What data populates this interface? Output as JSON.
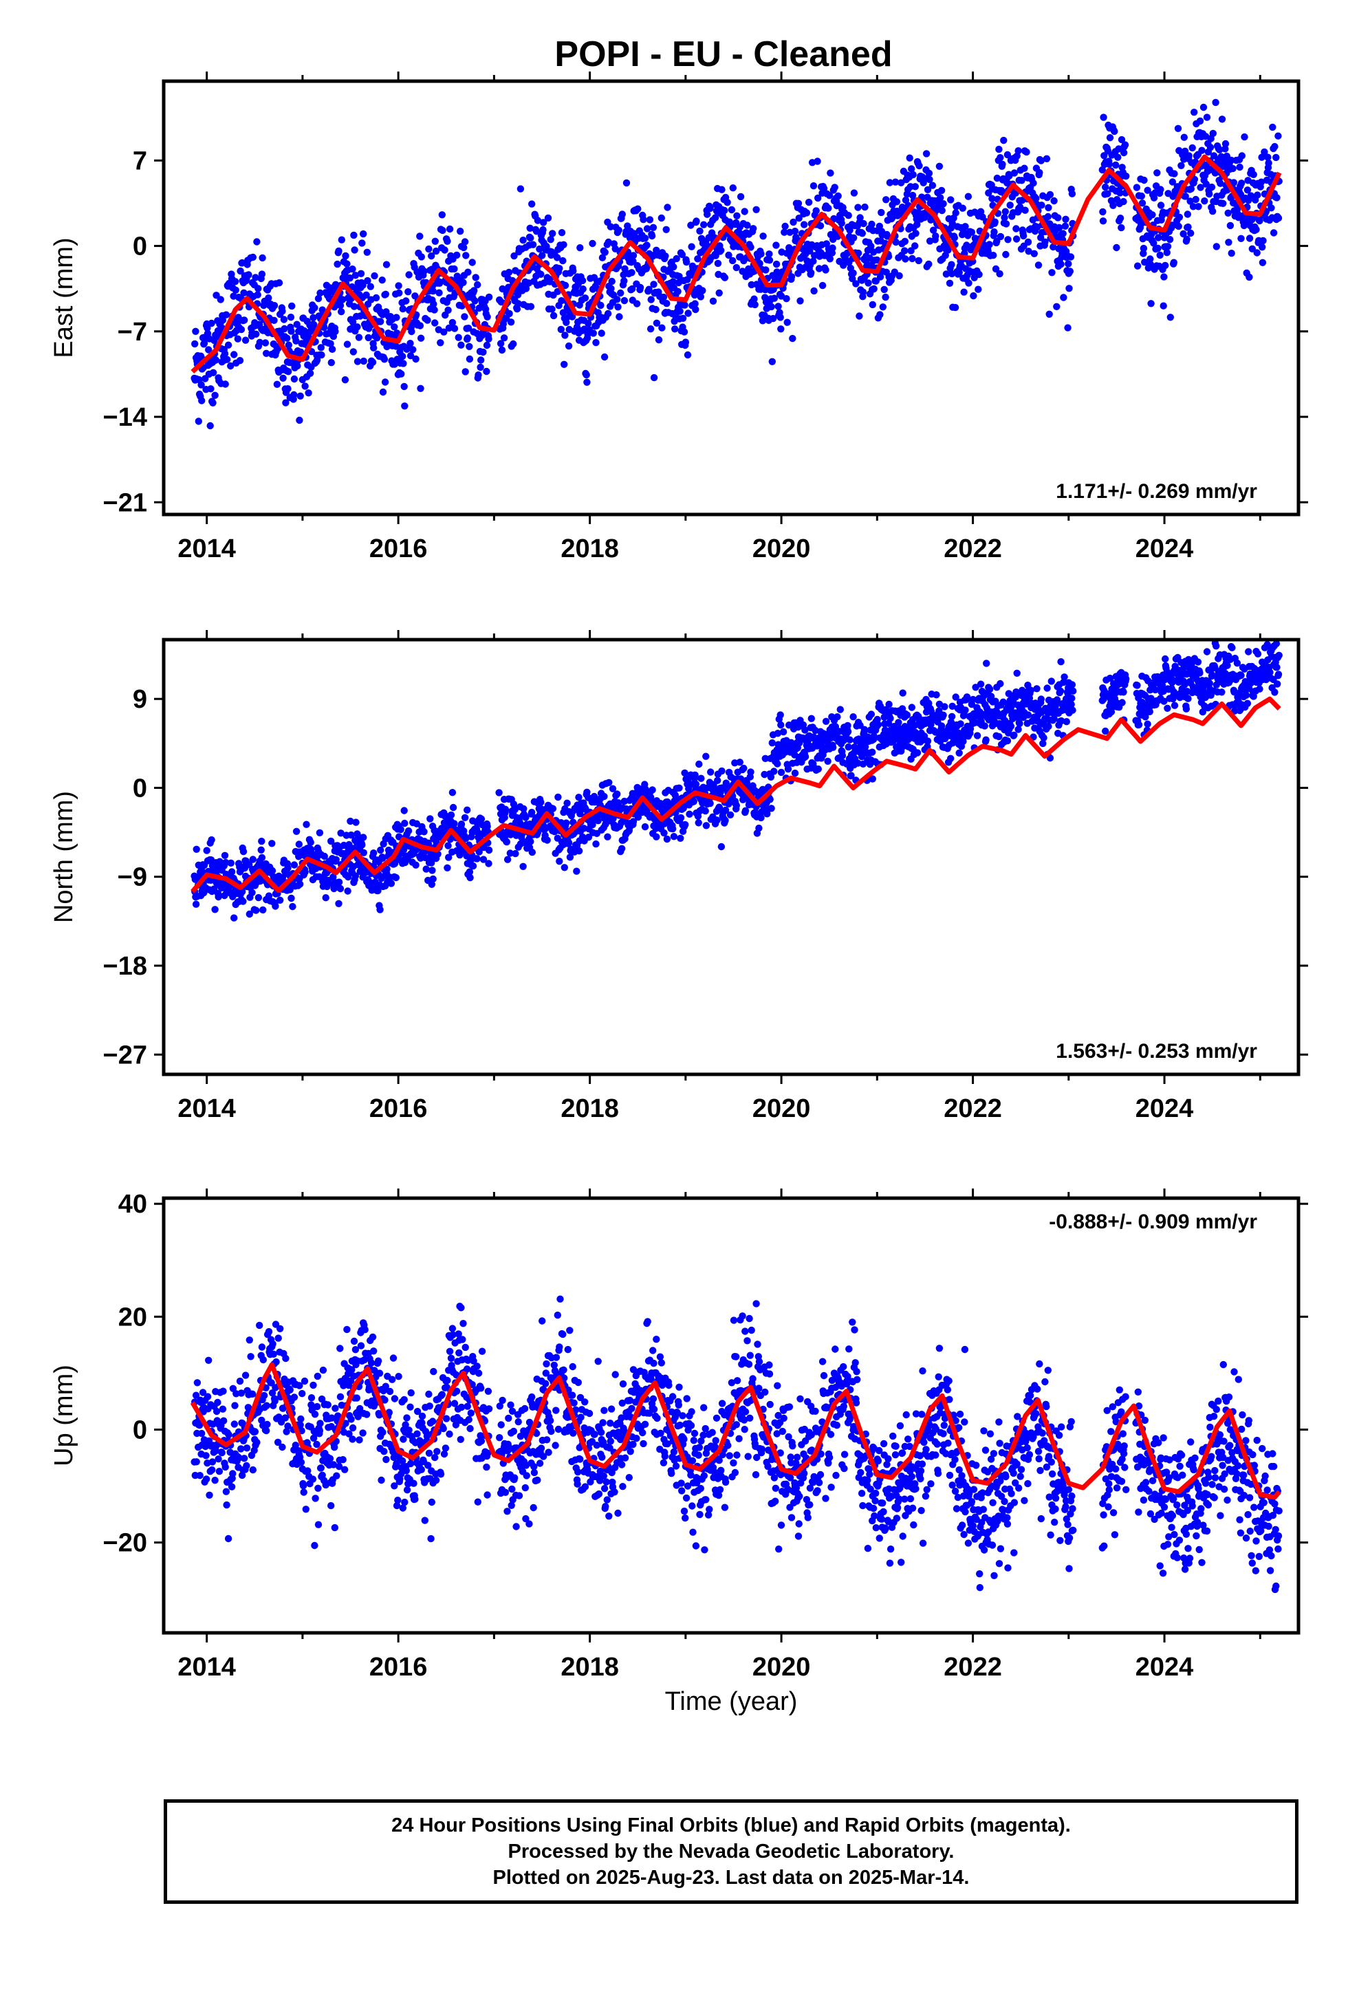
{
  "title": "POPI  - EU - Cleaned",
  "x_axis_label": "Time (year)",
  "x_ticks": [
    "2014",
    "2016",
    "2018",
    "2020",
    "2022",
    "2024"
  ],
  "colors": {
    "data": "#0000ff",
    "fit": "#ff0000",
    "axis": "#000000"
  },
  "footer": {
    "line1": "24 Hour Positions Using Final Orbits (blue) and Rapid Orbits (magenta).",
    "line2": "Processed by the Nevada Geodetic Laboratory.",
    "line3": "Plotted on 2025-Aug-23. Last data on 2025-Mar-14."
  },
  "chart_data": [
    {
      "type": "scatter",
      "component": "east",
      "ylabel": "East (mm)",
      "rate_label": "1.171+/- 0.269 mm/yr",
      "xlim": [
        2013.55,
        2025.4
      ],
      "ylim": [
        -22,
        13.5
      ],
      "yticks": [
        -21,
        -14,
        -7,
        0,
        7
      ],
      "ytick_labels": [
        "−21",
        "−14",
        "−7",
        "0",
        "7"
      ],
      "trend": {
        "intercept_at_2019_5": -2.0,
        "rate": 1.171,
        "annual_amp": 3.6,
        "peak_phase_year_fraction": 0.42
      },
      "fit_points": [
        [
          2013.85,
          -10.3
        ],
        [
          2014.1,
          -8.5
        ],
        [
          2014.3,
          -5.2
        ],
        [
          2014.42,
          -4.3
        ],
        [
          2014.6,
          -5.8
        ],
        [
          2014.85,
          -9.0
        ],
        [
          2015.0,
          -9.3
        ],
        [
          2015.2,
          -6.2
        ],
        [
          2015.42,
          -3.1
        ],
        [
          2015.6,
          -4.6
        ],
        [
          2015.85,
          -7.6
        ],
        [
          2016.0,
          -7.8
        ],
        [
          2016.2,
          -4.6
        ],
        [
          2016.42,
          -2.0
        ],
        [
          2016.6,
          -3.3
        ],
        [
          2016.85,
          -6.7
        ],
        [
          2017.0,
          -6.9
        ],
        [
          2017.2,
          -3.4
        ],
        [
          2017.42,
          -0.9
        ],
        [
          2017.6,
          -2.1
        ],
        [
          2017.85,
          -5.5
        ],
        [
          2018.0,
          -5.6
        ],
        [
          2018.2,
          -2.0
        ],
        [
          2018.42,
          0.3
        ],
        [
          2018.6,
          -1.0
        ],
        [
          2018.85,
          -4.3
        ],
        [
          2019.0,
          -4.4
        ],
        [
          2019.2,
          -0.9
        ],
        [
          2019.42,
          1.5
        ],
        [
          2019.6,
          0.1
        ],
        [
          2019.85,
          -3.2
        ],
        [
          2020.0,
          -3.2
        ],
        [
          2020.2,
          0.3
        ],
        [
          2020.42,
          2.6
        ],
        [
          2020.6,
          1.3
        ],
        [
          2020.85,
          -2.0
        ],
        [
          2021.0,
          -2.1
        ],
        [
          2021.2,
          1.5
        ],
        [
          2021.42,
          3.8
        ],
        [
          2021.6,
          2.5
        ],
        [
          2021.85,
          -0.9
        ],
        [
          2022.0,
          -1.0
        ],
        [
          2022.2,
          2.6
        ],
        [
          2022.42,
          5.0
        ],
        [
          2022.6,
          3.7
        ],
        [
          2022.85,
          0.3
        ],
        [
          2023.0,
          0.2
        ],
        [
          2023.2,
          3.8
        ],
        [
          2023.42,
          6.2
        ],
        [
          2023.6,
          4.9
        ],
        [
          2023.85,
          1.5
        ],
        [
          2024.0,
          1.3
        ],
        [
          2024.2,
          4.9
        ],
        [
          2024.42,
          7.3
        ],
        [
          2024.6,
          6.0
        ],
        [
          2024.85,
          2.7
        ],
        [
          2025.0,
          2.6
        ],
        [
          2025.2,
          6.0
        ]
      ]
    },
    {
      "type": "scatter",
      "component": "north",
      "ylabel": "North (mm)",
      "rate_label": "1.563+/- 0.253 mm/yr",
      "xlim": [
        2013.55,
        2025.4
      ],
      "ylim": [
        -29,
        15
      ],
      "yticks": [
        -27,
        -18,
        -9,
        0,
        9
      ],
      "ytick_labels": [
        "−27",
        "−18",
        "−9",
        "0",
        "9"
      ],
      "fit_points": [
        [
          2013.85,
          -10.5
        ],
        [
          2014.0,
          -8.8
        ],
        [
          2014.2,
          -9.2
        ],
        [
          2014.35,
          -10.1
        ],
        [
          2014.55,
          -8.4
        ],
        [
          2014.75,
          -10.4
        ],
        [
          2014.9,
          -9.0
        ],
        [
          2015.05,
          -7.2
        ],
        [
          2015.25,
          -8.0
        ],
        [
          2015.35,
          -8.6
        ],
        [
          2015.55,
          -6.5
        ],
        [
          2015.75,
          -8.6
        ],
        [
          2015.95,
          -7.0
        ],
        [
          2016.05,
          -5.2
        ],
        [
          2016.25,
          -6.0
        ],
        [
          2016.4,
          -6.3
        ],
        [
          2016.55,
          -4.3
        ],
        [
          2016.75,
          -6.5
        ],
        [
          2016.95,
          -4.9
        ],
        [
          2017.1,
          -3.8
        ],
        [
          2017.25,
          -4.2
        ],
        [
          2017.4,
          -4.6
        ],
        [
          2017.55,
          -2.6
        ],
        [
          2017.75,
          -4.8
        ],
        [
          2017.95,
          -3.0
        ],
        [
          2018.1,
          -2.1
        ],
        [
          2018.25,
          -2.6
        ],
        [
          2018.4,
          -3.0
        ],
        [
          2018.55,
          -1.0
        ],
        [
          2018.75,
          -3.2
        ],
        [
          2018.95,
          -1.5
        ],
        [
          2019.1,
          -0.5
        ],
        [
          2019.3,
          -1.0
        ],
        [
          2019.4,
          -1.3
        ],
        [
          2019.55,
          0.6
        ],
        [
          2019.75,
          -1.6
        ],
        [
          2019.95,
          0.2
        ],
        [
          2020.1,
          1.0
        ],
        [
          2020.3,
          0.5
        ],
        [
          2020.4,
          0.2
        ],
        [
          2020.55,
          2.2
        ],
        [
          2020.75,
          0.0
        ],
        [
          2020.95,
          1.6
        ],
        [
          2021.1,
          2.7
        ],
        [
          2021.3,
          2.2
        ],
        [
          2021.4,
          1.9
        ],
        [
          2021.55,
          3.8
        ],
        [
          2021.75,
          1.6
        ],
        [
          2021.95,
          3.3
        ],
        [
          2022.1,
          4.2
        ],
        [
          2022.3,
          3.8
        ],
        [
          2022.4,
          3.4
        ],
        [
          2022.55,
          5.3
        ],
        [
          2022.75,
          3.2
        ],
        [
          2022.95,
          4.9
        ],
        [
          2023.1,
          5.9
        ],
        [
          2023.3,
          5.3
        ],
        [
          2023.4,
          5.0
        ],
        [
          2023.55,
          6.9
        ],
        [
          2023.75,
          4.7
        ],
        [
          2023.95,
          6.5
        ],
        [
          2024.1,
          7.4
        ],
        [
          2024.3,
          6.9
        ],
        [
          2024.4,
          6.5
        ],
        [
          2024.6,
          8.5
        ],
        [
          2024.8,
          6.3
        ],
        [
          2024.95,
          8.1
        ],
        [
          2025.1,
          9.0
        ],
        [
          2025.2,
          8.0
        ]
      ]
    },
    {
      "type": "scatter",
      "component": "up",
      "ylabel": "Up (mm)",
      "rate_label": "-0.888+/- 0.909 mm/yr",
      "xlim": [
        2013.55,
        2025.4
      ],
      "ylim": [
        -36,
        41
      ],
      "yticks": [
        -20,
        0,
        20,
        40
      ],
      "ytick_labels": [
        "−20",
        "0",
        "20",
        "40"
      ],
      "fit_points": [
        [
          2013.85,
          4.8
        ],
        [
          2014.05,
          -1.0
        ],
        [
          2014.2,
          -2.7
        ],
        [
          2014.4,
          -0.5
        ],
        [
          2014.6,
          9.0
        ],
        [
          2014.68,
          11.5
        ],
        [
          2014.85,
          4.0
        ],
        [
          2015.0,
          -3.0
        ],
        [
          2015.15,
          -4.0
        ],
        [
          2015.35,
          -1.0
        ],
        [
          2015.55,
          8.0
        ],
        [
          2015.68,
          10.8
        ],
        [
          2015.85,
          3.0
        ],
        [
          2016.0,
          -3.8
        ],
        [
          2016.15,
          -5.0
        ],
        [
          2016.35,
          -2.0
        ],
        [
          2016.55,
          7.0
        ],
        [
          2016.68,
          10.0
        ],
        [
          2016.85,
          2.0
        ],
        [
          2017.0,
          -4.5
        ],
        [
          2017.15,
          -5.5
        ],
        [
          2017.35,
          -2.5
        ],
        [
          2017.55,
          6.5
        ],
        [
          2017.68,
          9.2
        ],
        [
          2017.85,
          1.0
        ],
        [
          2018.0,
          -5.5
        ],
        [
          2018.15,
          -6.5
        ],
        [
          2018.35,
          -3.0
        ],
        [
          2018.55,
          5.5
        ],
        [
          2018.68,
          8.3
        ],
        [
          2018.85,
          0.5
        ],
        [
          2019.0,
          -6.2
        ],
        [
          2019.15,
          -7.0
        ],
        [
          2019.35,
          -3.8
        ],
        [
          2019.55,
          5.0
        ],
        [
          2019.68,
          7.5
        ],
        [
          2019.85,
          -0.5
        ],
        [
          2020.0,
          -7.0
        ],
        [
          2020.15,
          -7.8
        ],
        [
          2020.35,
          -4.5
        ],
        [
          2020.55,
          4.5
        ],
        [
          2020.68,
          6.8
        ],
        [
          2020.85,
          -1.5
        ],
        [
          2021.0,
          -8.0
        ],
        [
          2021.15,
          -8.5
        ],
        [
          2021.35,
          -5.0
        ],
        [
          2021.55,
          3.5
        ],
        [
          2021.68,
          6.0
        ],
        [
          2021.85,
          -2.5
        ],
        [
          2022.0,
          -9.0
        ],
        [
          2022.15,
          -9.5
        ],
        [
          2022.35,
          -6.0
        ],
        [
          2022.55,
          2.5
        ],
        [
          2022.68,
          5.2
        ],
        [
          2022.85,
          -3.0
        ],
        [
          2023.0,
          -9.5
        ],
        [
          2023.15,
          -10.3
        ],
        [
          2023.35,
          -7.0
        ],
        [
          2023.55,
          1.5
        ],
        [
          2023.68,
          4.2
        ],
        [
          2023.85,
          -4.0
        ],
        [
          2024.0,
          -10.5
        ],
        [
          2024.15,
          -11.0
        ],
        [
          2024.35,
          -8.0
        ],
        [
          2024.55,
          0.5
        ],
        [
          2024.68,
          3.3
        ],
        [
          2024.85,
          -5.0
        ],
        [
          2025.0,
          -11.5
        ],
        [
          2025.15,
          -12.0
        ],
        [
          2025.2,
          -11.0
        ]
      ]
    }
  ]
}
